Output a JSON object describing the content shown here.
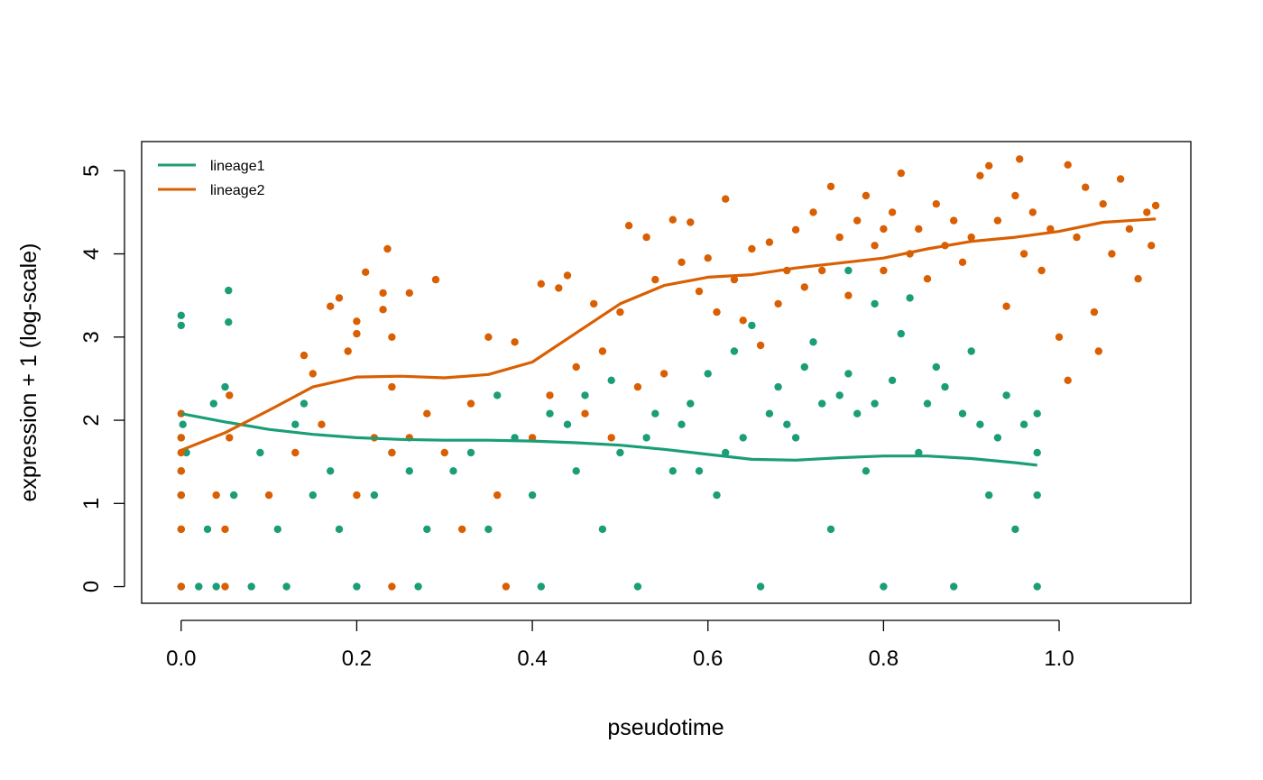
{
  "chart_data": {
    "type": "scatter",
    "title": "",
    "xlabel": "pseudotime",
    "ylabel": "expression + 1 (log-scale)",
    "xlim": [
      -0.045,
      1.15
    ],
    "ylim": [
      -0.2,
      5.35
    ],
    "xticks": [
      "0.0",
      "0.2",
      "0.4",
      "0.6",
      "0.8",
      "1.0"
    ],
    "xtick_values": [
      0.0,
      0.2,
      0.4,
      0.6,
      0.8,
      1.0
    ],
    "yticks": [
      "0",
      "1",
      "2",
      "3",
      "4",
      "5"
    ],
    "ytick_values": [
      0,
      1,
      2,
      3,
      4,
      5
    ],
    "grid": false,
    "legend_position": "top-left",
    "series": [
      {
        "name": "lineage1",
        "color": "#1B9E77",
        "smoother": {
          "x": [
            0.0,
            0.05,
            0.1,
            0.15,
            0.2,
            0.25,
            0.3,
            0.35,
            0.4,
            0.45,
            0.5,
            0.55,
            0.6,
            0.65,
            0.7,
            0.75,
            0.8,
            0.85,
            0.9,
            0.95,
            0.975
          ],
          "y": [
            2.08,
            1.98,
            1.89,
            1.83,
            1.79,
            1.77,
            1.76,
            1.76,
            1.75,
            1.73,
            1.7,
            1.65,
            1.59,
            1.53,
            1.52,
            1.55,
            1.57,
            1.57,
            1.54,
            1.49,
            1.46
          ]
        },
        "points": [
          [
            0.0,
            3.26
          ],
          [
            0.0,
            3.14
          ],
          [
            0.054,
            3.56
          ],
          [
            0.054,
            3.18
          ],
          [
            0.05,
            2.4
          ],
          [
            0.037,
            2.2
          ],
          [
            0.002,
            1.95
          ],
          [
            0.0,
            1.79
          ],
          [
            0.006,
            1.61
          ],
          [
            0.0,
            1.39
          ],
          [
            0.0,
            1.1
          ],
          [
            0.0,
            0.69
          ],
          [
            0.0,
            0.0
          ],
          [
            0.02,
            0.0
          ],
          [
            0.04,
            0.0
          ],
          [
            0.03,
            0.69
          ],
          [
            0.06,
            1.1
          ],
          [
            0.09,
            1.61
          ],
          [
            0.12,
            0.0
          ],
          [
            0.13,
            1.95
          ],
          [
            0.14,
            2.2
          ],
          [
            0.17,
            1.39
          ],
          [
            0.2,
            0.0
          ],
          [
            0.22,
            1.1
          ],
          [
            0.26,
            1.39
          ],
          [
            0.28,
            0.69
          ],
          [
            0.33,
            1.61
          ],
          [
            0.35,
            0.69
          ],
          [
            0.38,
            1.79
          ],
          [
            0.4,
            1.1
          ],
          [
            0.42,
            2.08
          ],
          [
            0.45,
            1.39
          ],
          [
            0.46,
            2.3
          ],
          [
            0.48,
            0.69
          ],
          [
            0.5,
            1.61
          ],
          [
            0.52,
            0.0
          ],
          [
            0.54,
            2.08
          ],
          [
            0.56,
            1.39
          ],
          [
            0.58,
            2.2
          ],
          [
            0.6,
            2.56
          ],
          [
            0.61,
            1.1
          ],
          [
            0.63,
            2.83
          ],
          [
            0.65,
            3.14
          ],
          [
            0.66,
            0.0
          ],
          [
            0.68,
            2.4
          ],
          [
            0.7,
            1.79
          ],
          [
            0.72,
            2.94
          ],
          [
            0.74,
            0.69
          ],
          [
            0.76,
            2.56
          ],
          [
            0.78,
            1.39
          ],
          [
            0.79,
            3.4
          ],
          [
            0.8,
            0.0
          ],
          [
            0.82,
            3.04
          ],
          [
            0.84,
            1.61
          ],
          [
            0.86,
            2.64
          ],
          [
            0.88,
            0.0
          ],
          [
            0.9,
            2.83
          ],
          [
            0.92,
            1.1
          ],
          [
            0.94,
            2.3
          ],
          [
            0.95,
            0.69
          ],
          [
            0.96,
            1.95
          ],
          [
            0.975,
            2.08
          ],
          [
            0.975,
            1.61
          ],
          [
            0.975,
            1.1
          ],
          [
            0.975,
            0.0
          ],
          [
            0.83,
            3.47
          ],
          [
            0.76,
            3.8
          ],
          [
            0.71,
            2.64
          ],
          [
            0.67,
            2.08
          ],
          [
            0.57,
            1.95
          ],
          [
            0.53,
            1.79
          ],
          [
            0.49,
            2.48
          ],
          [
            0.44,
            1.95
          ],
          [
            0.41,
            0.0
          ],
          [
            0.36,
            2.3
          ],
          [
            0.31,
            1.39
          ],
          [
            0.27,
            0.0
          ],
          [
            0.24,
            1.61
          ],
          [
            0.18,
            0.69
          ],
          [
            0.15,
            1.1
          ],
          [
            0.11,
            0.69
          ],
          [
            0.08,
            0.0
          ],
          [
            0.73,
            2.2
          ],
          [
            0.75,
            2.3
          ],
          [
            0.77,
            2.08
          ],
          [
            0.79,
            2.2
          ],
          [
            0.81,
            2.48
          ],
          [
            0.85,
            2.2
          ],
          [
            0.87,
            2.4
          ],
          [
            0.89,
            2.08
          ],
          [
            0.91,
            1.95
          ],
          [
            0.93,
            1.79
          ],
          [
            0.69,
            1.95
          ],
          [
            0.64,
            1.79
          ],
          [
            0.62,
            1.61
          ],
          [
            0.59,
            1.39
          ]
        ]
      },
      {
        "name": "lineage2",
        "color": "#D95F02",
        "smoother": {
          "x": [
            0.0,
            0.05,
            0.1,
            0.15,
            0.2,
            0.25,
            0.3,
            0.35,
            0.4,
            0.45,
            0.5,
            0.55,
            0.6,
            0.65,
            0.7,
            0.75,
            0.8,
            0.85,
            0.9,
            0.95,
            1.0,
            1.05,
            1.11
          ],
          "y": [
            1.64,
            1.85,
            2.12,
            2.4,
            2.52,
            2.53,
            2.51,
            2.55,
            2.7,
            3.05,
            3.4,
            3.62,
            3.72,
            3.75,
            3.83,
            3.89,
            3.95,
            4.06,
            4.15,
            4.2,
            4.27,
            4.38,
            4.42
          ]
        },
        "points": [
          [
            0.0,
            2.08
          ],
          [
            0.0,
            1.79
          ],
          [
            0.0,
            1.61
          ],
          [
            0.0,
            1.39
          ],
          [
            0.0,
            1.1
          ],
          [
            0.0,
            0.69
          ],
          [
            0.0,
            0.0
          ],
          [
            0.055,
            2.3
          ],
          [
            0.055,
            1.79
          ],
          [
            0.04,
            1.1
          ],
          [
            0.05,
            0.69
          ],
          [
            0.05,
            0.0
          ],
          [
            0.1,
            1.1
          ],
          [
            0.13,
            1.61
          ],
          [
            0.14,
            2.78
          ],
          [
            0.15,
            2.56
          ],
          [
            0.16,
            1.95
          ],
          [
            0.17,
            3.37
          ],
          [
            0.18,
            3.47
          ],
          [
            0.19,
            2.83
          ],
          [
            0.2,
            3.19
          ],
          [
            0.2,
            3.04
          ],
          [
            0.2,
            1.1
          ],
          [
            0.21,
            3.78
          ],
          [
            0.22,
            1.79
          ],
          [
            0.23,
            3.33
          ],
          [
            0.23,
            3.53
          ],
          [
            0.235,
            4.06
          ],
          [
            0.24,
            3.0
          ],
          [
            0.24,
            2.4
          ],
          [
            0.24,
            1.61
          ],
          [
            0.24,
            0.0
          ],
          [
            0.26,
            3.53
          ],
          [
            0.26,
            1.79
          ],
          [
            0.28,
            2.08
          ],
          [
            0.29,
            3.69
          ],
          [
            0.3,
            1.61
          ],
          [
            0.32,
            0.69
          ],
          [
            0.33,
            2.2
          ],
          [
            0.35,
            3.0
          ],
          [
            0.36,
            1.1
          ],
          [
            0.37,
            0.0
          ],
          [
            0.38,
            2.94
          ],
          [
            0.4,
            1.79
          ],
          [
            0.41,
            3.64
          ],
          [
            0.42,
            2.3
          ],
          [
            0.43,
            3.59
          ],
          [
            0.44,
            3.74
          ],
          [
            0.45,
            2.64
          ],
          [
            0.46,
            2.08
          ],
          [
            0.47,
            3.4
          ],
          [
            0.48,
            2.83
          ],
          [
            0.49,
            1.79
          ],
          [
            0.5,
            3.3
          ],
          [
            0.51,
            4.34
          ],
          [
            0.52,
            2.4
          ],
          [
            0.53,
            4.2
          ],
          [
            0.54,
            3.69
          ],
          [
            0.55,
            2.56
          ],
          [
            0.56,
            4.41
          ],
          [
            0.57,
            3.9
          ],
          [
            0.58,
            4.38
          ],
          [
            0.59,
            3.55
          ],
          [
            0.6,
            3.95
          ],
          [
            0.61,
            3.3
          ],
          [
            0.62,
            4.66
          ],
          [
            0.63,
            3.69
          ],
          [
            0.64,
            3.2
          ],
          [
            0.65,
            4.06
          ],
          [
            0.66,
            2.9
          ],
          [
            0.67,
            4.14
          ],
          [
            0.68,
            3.4
          ],
          [
            0.69,
            3.8
          ],
          [
            0.7,
            4.29
          ],
          [
            0.71,
            3.6
          ],
          [
            0.72,
            4.5
          ],
          [
            0.73,
            3.8
          ],
          [
            0.74,
            4.81
          ],
          [
            0.75,
            4.2
          ],
          [
            0.76,
            3.5
          ],
          [
            0.77,
            4.4
          ],
          [
            0.78,
            4.7
          ],
          [
            0.79,
            4.1
          ],
          [
            0.8,
            4.3
          ],
          [
            0.8,
            3.8
          ],
          [
            0.81,
            4.5
          ],
          [
            0.82,
            4.97
          ],
          [
            0.83,
            4.0
          ],
          [
            0.84,
            4.3
          ],
          [
            0.85,
            3.7
          ],
          [
            0.86,
            4.6
          ],
          [
            0.87,
            4.1
          ],
          [
            0.88,
            4.4
          ],
          [
            0.89,
            3.9
          ],
          [
            0.9,
            4.2
          ],
          [
            0.91,
            4.94
          ],
          [
            0.92,
            5.06
          ],
          [
            0.93,
            4.4
          ],
          [
            0.94,
            3.37
          ],
          [
            0.95,
            4.7
          ],
          [
            0.955,
            5.14
          ],
          [
            0.96,
            4.0
          ],
          [
            0.97,
            4.5
          ],
          [
            0.98,
            3.8
          ],
          [
            0.99,
            4.3
          ],
          [
            1.0,
            3.0
          ],
          [
            1.01,
            5.07
          ],
          [
            1.01,
            2.48
          ],
          [
            1.02,
            4.2
          ],
          [
            1.03,
            4.8
          ],
          [
            1.04,
            3.3
          ],
          [
            1.045,
            2.83
          ],
          [
            1.05,
            4.6
          ],
          [
            1.06,
            4.0
          ],
          [
            1.07,
            4.9
          ],
          [
            1.08,
            4.3
          ],
          [
            1.09,
            3.7
          ],
          [
            1.1,
            4.5
          ],
          [
            1.11,
            4.58
          ],
          [
            1.105,
            4.1
          ]
        ]
      }
    ]
  }
}
